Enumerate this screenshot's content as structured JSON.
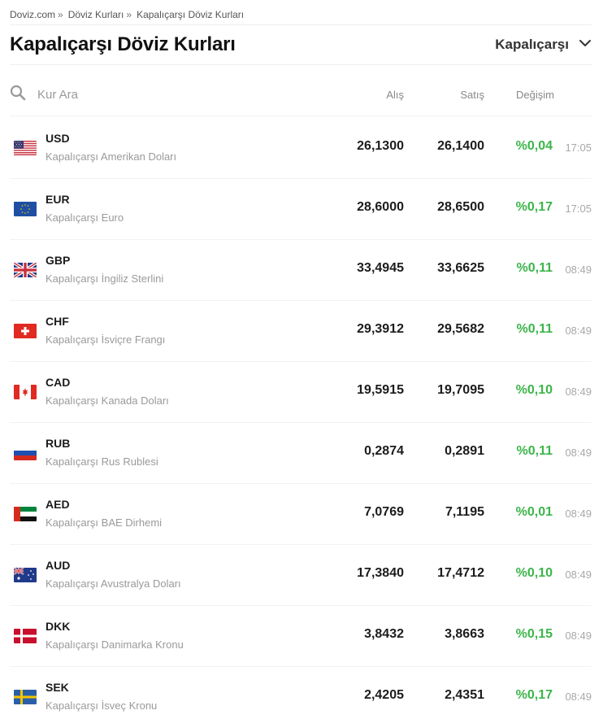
{
  "breadcrumb": [
    {
      "label": "Doviz.com"
    },
    {
      "label": "Döviz Kurları"
    },
    {
      "label": "Kapalıçarşı Döviz Kurları"
    }
  ],
  "page_title": "Kapalıçarşı Döviz Kurları",
  "market_select": {
    "value": "Kapalıçarşı"
  },
  "search": {
    "placeholder": "Kur Ara"
  },
  "columns": {
    "buy": "Alış",
    "sell": "Satış",
    "change": "Değişim"
  },
  "colors": {
    "positive": "#3cb54a"
  },
  "rows": [
    {
      "flag": "us-flag-icon",
      "code": "USD",
      "name": "Kapalıçarşı Amerikan Doları",
      "buy": "26,1300",
      "sell": "26,1400",
      "change": "%0,04",
      "time": "17:05"
    },
    {
      "flag": "eu-flag-icon",
      "code": "EUR",
      "name": "Kapalıçarşı Euro",
      "buy": "28,6000",
      "sell": "28,6500",
      "change": "%0,17",
      "time": "17:05"
    },
    {
      "flag": "gb-flag-icon",
      "code": "GBP",
      "name": "Kapalıçarşı İngiliz Sterlini",
      "buy": "33,4945",
      "sell": "33,6625",
      "change": "%0,11",
      "time": "08:49"
    },
    {
      "flag": "ch-flag-icon",
      "code": "CHF",
      "name": "Kapalıçarşı İsviçre Frangı",
      "buy": "29,3912",
      "sell": "29,5682",
      "change": "%0,11",
      "time": "08:49"
    },
    {
      "flag": "ca-flag-icon",
      "code": "CAD",
      "name": "Kapalıçarşı Kanada Doları",
      "buy": "19,5915",
      "sell": "19,7095",
      "change": "%0,10",
      "time": "08:49"
    },
    {
      "flag": "ru-flag-icon",
      "code": "RUB",
      "name": "Kapalıçarşı Rus Rublesi",
      "buy": "0,2874",
      "sell": "0,2891",
      "change": "%0,11",
      "time": "08:49"
    },
    {
      "flag": "ae-flag-icon",
      "code": "AED",
      "name": "Kapalıçarşı BAE Dirhemi",
      "buy": "7,0769",
      "sell": "7,1195",
      "change": "%0,01",
      "time": "08:49"
    },
    {
      "flag": "au-flag-icon",
      "code": "AUD",
      "name": "Kapalıçarşı Avustralya Doları",
      "buy": "17,3840",
      "sell": "17,4712",
      "change": "%0,10",
      "time": "08:49"
    },
    {
      "flag": "dk-flag-icon",
      "code": "DKK",
      "name": "Kapalıçarşı Danimarka Kronu",
      "buy": "3,8432",
      "sell": "3,8663",
      "change": "%0,15",
      "time": "08:49"
    },
    {
      "flag": "se-flag-icon",
      "code": "SEK",
      "name": "Kapalıçarşı İsveç Kronu",
      "buy": "2,4205",
      "sell": "2,4351",
      "change": "%0,17",
      "time": "08:49"
    }
  ]
}
